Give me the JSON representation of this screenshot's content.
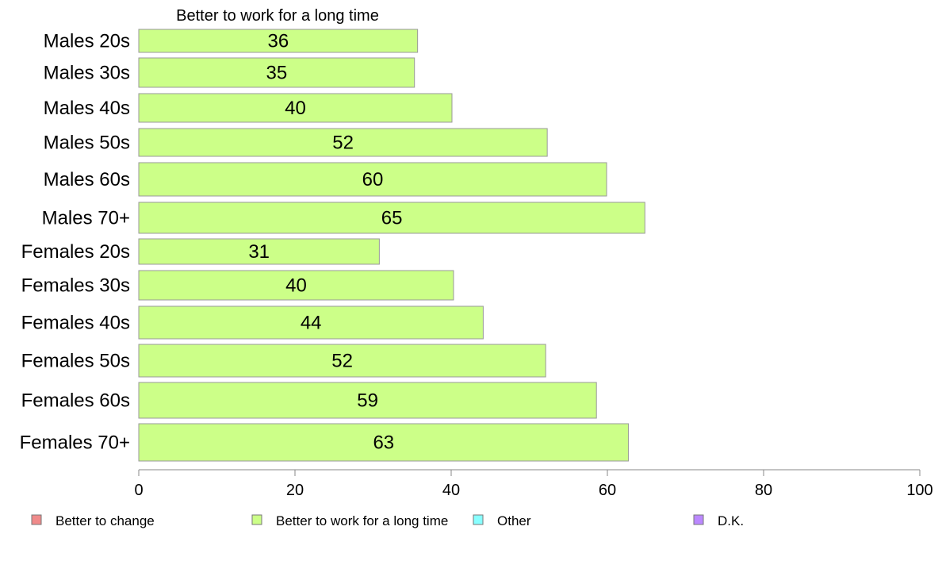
{
  "chart_data": {
    "type": "bar",
    "orientation": "horizontal",
    "title": "Better to work for a long time",
    "categories": [
      "Males 20s",
      "Males 30s",
      "Males 40s",
      "Males 50s",
      "Males 60s",
      "Males 70+",
      "Females 20s",
      "Females 30s",
      "Females 40s",
      "Females 50s",
      "Females 60s",
      "Females 70+"
    ],
    "series": [
      {
        "name": "Better to work for a long time",
        "color": "#ccff88",
        "values": [
          35.7,
          35.3,
          40.1,
          52.3,
          59.9,
          64.8,
          30.8,
          40.3,
          44.1,
          52.1,
          58.6,
          62.7
        ],
        "labels": [
          "36",
          "35",
          "40",
          "52",
          "60",
          "65",
          "31",
          "40",
          "44",
          "52",
          "59",
          "63"
        ]
      }
    ],
    "xlim": [
      0,
      100
    ],
    "xticks": [
      "0",
      "20",
      "40",
      "60",
      "80",
      "100"
    ],
    "grid": false,
    "legend_position": "bottom",
    "legend": [
      {
        "label": "Better to change",
        "color": "#f08a8a"
      },
      {
        "label": "Better to work for a long time",
        "color": "#ccff88"
      },
      {
        "label": "Other",
        "color": "#88ffff"
      },
      {
        "label": "D.K.",
        "color": "#bb88ff"
      }
    ],
    "bar_stroke_color": "#999999",
    "axis_color": "#888888"
  }
}
